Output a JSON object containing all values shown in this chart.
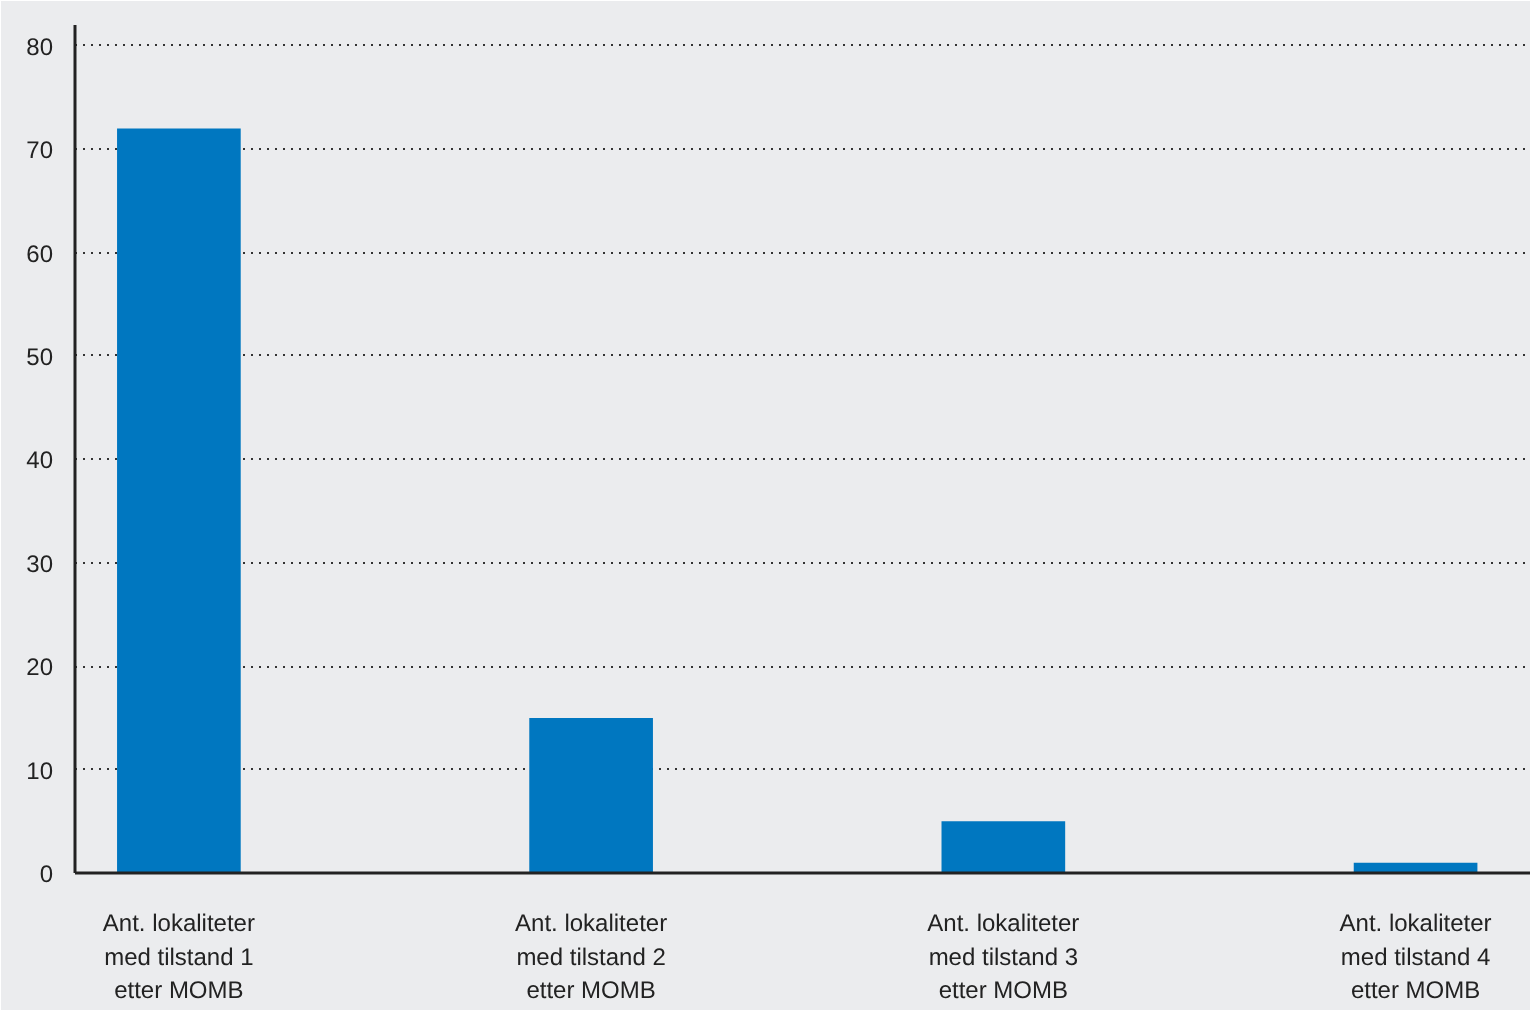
{
  "chart_data": {
    "type": "bar",
    "categories": [
      "Ant. lokaliteter\nmed tilstand 1\netter MOMB",
      "Ant. lokaliteter\nmed tilstand 2\netter MOMB",
      "Ant. lokaliteter\nmed tilstand 3\netter MOMB",
      "Ant. lokaliteter\nmed tilstand 4\netter MOMB"
    ],
    "values": [
      72,
      15,
      5,
      1
    ],
    "color": "#0077c0",
    "ylim": [
      0,
      82
    ],
    "yticks": [
      0,
      10,
      20,
      30,
      40,
      50,
      60,
      70,
      80
    ],
    "grid": "y"
  }
}
